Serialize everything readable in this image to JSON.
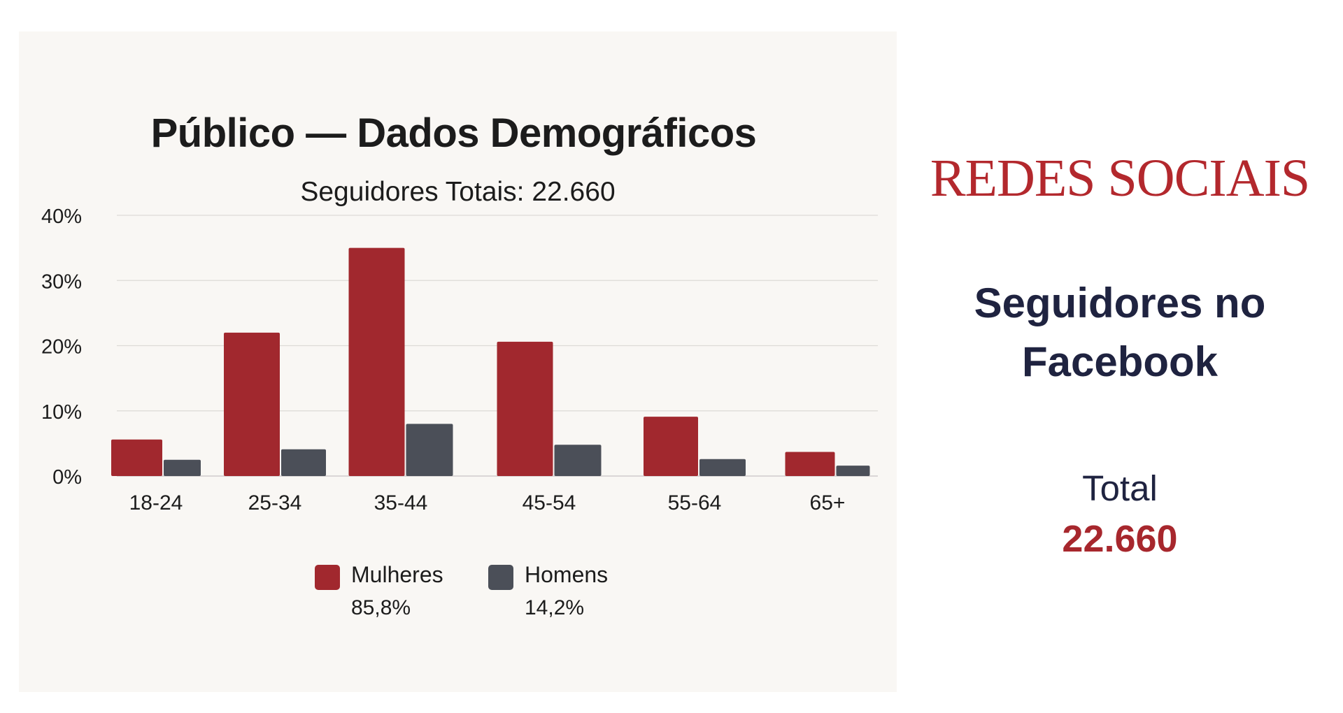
{
  "chart_data": {
    "type": "bar",
    "title": "Público — Dados Demográficos",
    "subtitle": "Seguidores Totais: 22.660",
    "categories": [
      "18-24",
      "25-34",
      "35-44",
      "45-54",
      "55-64",
      "65+"
    ],
    "series": [
      {
        "name": "Mulheres",
        "share": "85,8%",
        "color": "#a1282e",
        "values": [
          5.6,
          22.0,
          35.0,
          20.6,
          9.1,
          3.7
        ]
      },
      {
        "name": "Homens",
        "share": "14,2%",
        "color": "#4b4f58",
        "values": [
          2.5,
          4.1,
          8.0,
          4.8,
          2.6,
          1.6
        ]
      }
    ],
    "yticks": [
      "0%",
      "10%",
      "20%",
      "30%",
      "40%"
    ],
    "ylim": [
      0,
      40
    ],
    "grid": true,
    "legend_position": "bottom"
  },
  "side": {
    "heading": "REDES SOCIAIS",
    "subheading_line1": "Seguidores no",
    "subheading_line2": "Facebook",
    "total_label": "Total",
    "total_value": "22.660"
  }
}
